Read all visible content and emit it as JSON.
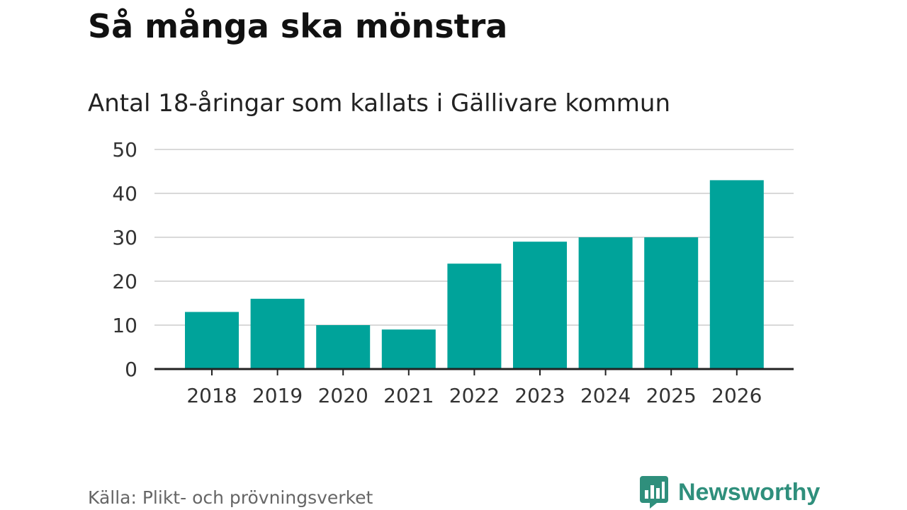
{
  "chart_data": {
    "type": "bar",
    "title": "Så många ska mönstra",
    "subtitle": "Antal 18-åringar som kallats i Gällivare kommun",
    "categories": [
      "2018",
      "2019",
      "2020",
      "2021",
      "2022",
      "2023",
      "2024",
      "2025",
      "2026"
    ],
    "values": [
      13,
      16,
      10,
      9,
      24,
      29,
      30,
      30,
      43
    ],
    "yticks": [
      "0",
      "10",
      "20",
      "30",
      "40",
      "50"
    ],
    "ylim": [
      0,
      50
    ],
    "xlabel": "",
    "ylabel": "",
    "grid": true,
    "bar_color": "#00a39a",
    "grid_color": "#d9d9d9",
    "axis_color": "#222222"
  },
  "footer": {
    "source": "Källa: Plikt- och prövningsverket",
    "brand_name": "Newsworthy",
    "brand_icon": "newsworthy-logo-icon",
    "brand_color": "#2f8f7c"
  }
}
